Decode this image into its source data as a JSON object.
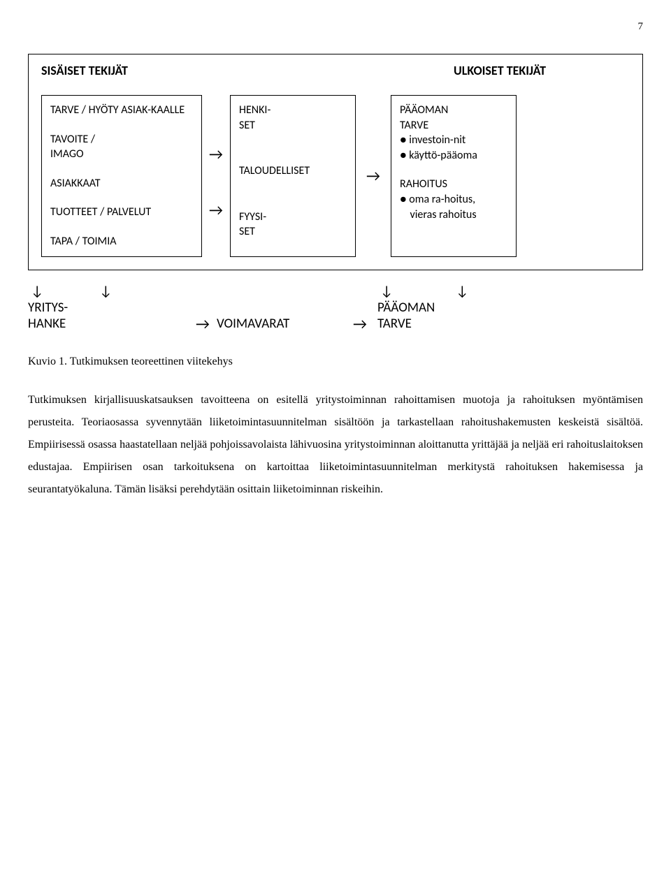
{
  "page_number": "7",
  "diagram": {
    "header_left": "SISÄISET TEKIJÄT",
    "header_right": "ULKOISET TEKIJÄT",
    "left_box": {
      "b1": "TARVE / HYÖTY ASIAK-KAALLE",
      "b2_l1": "TAVOITE /",
      "b2_l2": "IMAGO",
      "b3": "ASIAKKAAT",
      "b4": "TUOTTEET / PALVELUT",
      "b5": "TAPA / TOIMIA"
    },
    "mid_box": {
      "b1_l1": "HENKI-",
      "b1_l2": "SET",
      "b2": "TALOUDELLISET",
      "b3_l1": "FYYSI-",
      "b3_l2": "SET"
    },
    "right_box": {
      "b1_l1": "PÄÄOMAN",
      "b1_l2": "TARVE",
      "b1_l3": "● investoin-nit",
      "b1_l4": "● käyttö-pääoma",
      "b2_l1": "RAHOITUS",
      "b2_l2": "● oma ra-hoitus,",
      "b2_l3": "    vieras rahoitus"
    },
    "bottom": {
      "left_l1": "YRITYS-",
      "left_l2": "HANKE",
      "mid": "VOIMAVARAT",
      "right_l1": "PÄÄOMAN",
      "right_l2": "TARVE"
    },
    "arrow_right": "→",
    "arrow_down": "↓"
  },
  "caption": "Kuvio 1. Tutkimuksen teoreettinen viitekehys",
  "body": "Tutkimuksen kirjallisuuskatsauksen tavoitteena on esitellä yritystoiminnan rahoittamisen muotoja ja rahoituksen myöntämisen perusteita. Teoriaosassa syvennytään liiketoimintasuunnitelman sisältöön ja tarkastellaan rahoitushakemusten keskeistä sisältöä. Empiirisessä osassa haastatellaan neljää pohjoissavolaista lähivuosina yritystoiminnan aloittanutta yrittäjää ja neljää eri rahoituslaitoksen edustajaa. Empiirisen osan tarkoituksena on kartoittaa liiketoimintasuunnitelman merkitystä rahoituksen hakemisessa ja seurantatyökaluna. Tämän lisäksi perehdytään osittain liiketoiminnan riskeihin."
}
